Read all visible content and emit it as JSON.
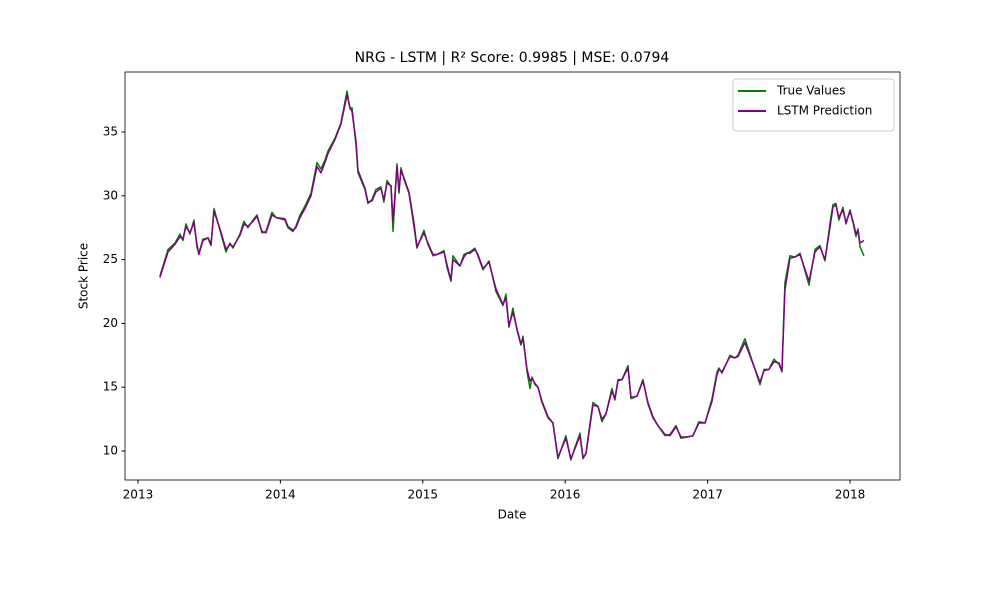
{
  "chart_data": {
    "type": "line",
    "title": "NRG - LSTM | R² Score: 0.9985 | MSE: 0.0794",
    "x_label": "Date",
    "y_label": "Stock Price",
    "x": [
      2013.154,
      2013.211,
      2013.26,
      2013.295,
      2013.316,
      2013.337,
      2013.365,
      2013.393,
      2013.414,
      2013.428,
      2013.456,
      2013.492,
      2013.513,
      2013.534,
      2013.576,
      2013.618,
      2013.646,
      2013.667,
      2013.716,
      2013.744,
      2013.772,
      2013.808,
      2013.836,
      2013.871,
      2013.899,
      2013.941,
      2013.969,
      2014.032,
      2014.053,
      2014.088,
      2014.109,
      2014.138,
      2014.173,
      2014.215,
      2014.257,
      2014.285,
      2014.313,
      2014.334,
      2014.383,
      2014.425,
      2014.468,
      2014.489,
      2014.503,
      2014.531,
      2014.545,
      2014.594,
      2014.615,
      2014.643,
      2014.671,
      2014.706,
      2014.727,
      2014.749,
      2014.777,
      2014.791,
      2014.819,
      2014.833,
      2014.847,
      2014.868,
      2014.903,
      2014.938,
      2014.959,
      2015.008,
      2015.036,
      2015.072,
      2015.1,
      2015.149,
      2015.17,
      2015.198,
      2015.212,
      2015.261,
      2015.289,
      2015.31,
      2015.331,
      2015.366,
      2015.387,
      2015.423,
      2015.465,
      2015.514,
      2015.563,
      2015.584,
      2015.605,
      2015.633,
      2015.661,
      2015.689,
      2015.704,
      2015.732,
      2015.753,
      2015.767,
      2015.788,
      2015.809,
      2015.837,
      2015.879,
      2015.914,
      2015.949,
      2016.005,
      2016.04,
      2016.069,
      2016.104,
      2016.125,
      2016.146,
      2016.16,
      2016.195,
      2016.23,
      2016.258,
      2016.286,
      2016.328,
      2016.349,
      2016.371,
      2016.399,
      2016.441,
      2016.462,
      2016.504,
      2016.546,
      2016.581,
      2016.616,
      2016.651,
      2016.701,
      2016.736,
      2016.778,
      2016.813,
      2016.855,
      2016.897,
      2016.939,
      2016.982,
      2017.031,
      2017.066,
      2017.08,
      2017.101,
      2017.157,
      2017.192,
      2017.213,
      2017.262,
      2017.368,
      2017.396,
      2017.431,
      2017.466,
      2017.501,
      2017.522,
      2017.543,
      2017.578,
      2017.613,
      2017.649,
      2017.712,
      2017.754,
      2017.789,
      2017.824,
      2017.859,
      2017.88,
      2017.901,
      2017.922,
      2017.95,
      2017.972,
      2018.0,
      2018.021,
      2018.042,
      2018.056,
      2018.07,
      2018.098
    ],
    "series": [
      {
        "name": "True Values",
        "color": "green",
        "values": [
          23.7,
          25.8,
          26.3,
          27.0,
          26.5,
          27.8,
          27.0,
          28.1,
          26.0,
          25.5,
          26.6,
          26.7,
          26.1,
          29.0,
          27.3,
          25.6,
          26.3,
          25.9,
          27.0,
          28.0,
          27.5,
          28.1,
          28.5,
          27.1,
          27.2,
          28.7,
          28.3,
          28.1,
          27.5,
          27.2,
          27.6,
          28.5,
          29.2,
          30.2,
          32.6,
          32.1,
          32.8,
          33.5,
          34.5,
          35.7,
          38.2,
          36.8,
          36.9,
          34.0,
          31.8,
          30.5,
          29.4,
          29.7,
          30.5,
          30.7,
          29.5,
          31.2,
          30.7,
          27.2,
          32.5,
          30.2,
          32.2,
          31.3,
          30.2,
          27.6,
          25.9,
          27.3,
          26.2,
          25.3,
          25.4,
          25.7,
          24.4,
          23.3,
          25.3,
          24.5,
          25.4,
          25.5,
          25.6,
          25.9,
          25.3,
          24.2,
          24.9,
          22.5,
          21.4,
          22.3,
          19.7,
          21.2,
          19.5,
          18.3,
          19.0,
          16.2,
          14.9,
          15.8,
          15.2,
          15.0,
          13.8,
          12.6,
          12.2,
          9.4,
          11.2,
          9.3,
          10.3,
          11.4,
          9.4,
          9.8,
          11.0,
          13.8,
          13.5,
          12.3,
          12.9,
          14.9,
          14.0,
          15.6,
          15.6,
          16.7,
          14.1,
          14.3,
          15.6,
          13.7,
          12.6,
          12.0,
          11.2,
          11.3,
          12.0,
          11.0,
          11.1,
          11.2,
          12.3,
          12.2,
          14.1,
          16.2,
          16.5,
          16.1,
          17.5,
          17.3,
          17.5,
          18.8,
          15.2,
          16.4,
          16.4,
          17.2,
          16.8,
          16.2,
          23.2,
          25.3,
          25.2,
          25.5,
          23.0,
          25.8,
          26.1,
          24.9,
          27.8,
          29.3,
          29.4,
          28.1,
          29.1,
          27.8,
          28.9,
          27.9,
          26.8,
          27.4,
          26.0,
          25.3
        ]
      },
      {
        "name": "LSTM Prediction",
        "color": "purple",
        "values": [
          23.6,
          25.6,
          26.2,
          26.8,
          26.6,
          27.6,
          27.1,
          27.9,
          26.2,
          25.4,
          26.5,
          26.7,
          26.2,
          28.8,
          27.4,
          25.8,
          26.2,
          26.0,
          26.9,
          27.8,
          27.6,
          28.0,
          28.4,
          27.2,
          27.1,
          28.5,
          28.3,
          28.2,
          27.6,
          27.3,
          27.5,
          28.3,
          29.0,
          30.0,
          32.3,
          31.8,
          32.6,
          33.3,
          34.4,
          35.6,
          37.9,
          36.9,
          36.6,
          34.3,
          32.0,
          30.6,
          29.5,
          29.6,
          30.3,
          30.6,
          29.7,
          31.0,
          30.8,
          28.0,
          32.3,
          30.4,
          32.0,
          31.4,
          30.3,
          27.9,
          26.0,
          27.1,
          26.3,
          25.4,
          25.4,
          25.6,
          24.6,
          23.4,
          25.0,
          24.5,
          25.2,
          25.5,
          25.5,
          25.8,
          25.4,
          24.3,
          24.8,
          22.7,
          21.5,
          22.0,
          19.8,
          20.9,
          19.6,
          18.4,
          18.8,
          16.4,
          15.5,
          15.7,
          15.3,
          15.0,
          13.9,
          12.7,
          12.2,
          9.5,
          11.0,
          9.4,
          10.2,
          11.2,
          9.5,
          9.8,
          10.9,
          13.6,
          13.5,
          12.5,
          12.9,
          14.7,
          14.1,
          15.5,
          15.6,
          16.5,
          14.2,
          14.3,
          15.5,
          13.8,
          12.7,
          12.0,
          11.3,
          11.2,
          11.9,
          11.1,
          11.1,
          11.2,
          12.2,
          12.2,
          13.9,
          16.0,
          16.4,
          16.2,
          17.4,
          17.3,
          17.4,
          18.5,
          15.4,
          16.3,
          16.4,
          17.0,
          16.9,
          16.3,
          22.6,
          25.1,
          25.2,
          25.4,
          23.3,
          25.6,
          26.0,
          25.0,
          27.5,
          29.1,
          29.3,
          28.3,
          28.9,
          27.9,
          28.8,
          28.0,
          27.0,
          27.3,
          26.3,
          26.5
        ]
      }
    ],
    "xlim": [
      2012.909,
      2018.351
    ],
    "ylim": [
      7.73,
      39.7
    ],
    "xticks": [
      2013,
      2014,
      2015,
      2016,
      2017,
      2018
    ],
    "yticks": [
      10,
      15,
      20,
      25,
      30,
      35
    ],
    "grid": false,
    "legend": "upper right"
  }
}
